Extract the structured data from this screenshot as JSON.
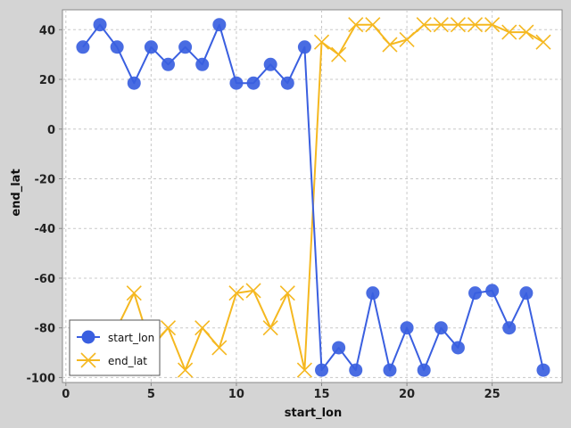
{
  "chart_data": {
    "type": "line",
    "xlabel": "start_lon",
    "ylabel": "end_lat",
    "xlim": [
      -0.2,
      29.1
    ],
    "ylim": [
      -102,
      48
    ],
    "xticks": [
      0,
      5,
      10,
      15,
      20,
      25
    ],
    "yticks": [
      40,
      20,
      0,
      -20,
      -40,
      -60,
      -80,
      -100
    ],
    "grid": true,
    "legend_position": "bottom-left",
    "x": [
      1,
      2,
      3,
      4,
      5,
      6,
      7,
      8,
      9,
      10,
      11,
      12,
      13,
      14,
      15,
      16,
      17,
      18,
      19,
      20,
      21,
      22,
      23,
      24,
      25,
      26,
      27,
      28
    ],
    "series": [
      {
        "name": "start_lon",
        "color": "#3a5fe0",
        "marker": "circle",
        "values": [
          33,
          42,
          33,
          18.5,
          33,
          26,
          33,
          26,
          42,
          18.5,
          18.5,
          26,
          18.5,
          33,
          -97,
          -88,
          -97,
          -66,
          -97,
          -80,
          -97,
          -80,
          -88,
          -66,
          -65,
          -80,
          -66,
          -97
        ]
      },
      {
        "name": "end_lat",
        "color": "#f5b820",
        "marker": "x",
        "values": [
          -80,
          -86,
          -80,
          -66,
          -88,
          -80,
          -97,
          -80,
          -88,
          -66,
          -65,
          -80,
          -66,
          -97,
          35,
          30,
          42,
          42,
          34,
          36,
          42,
          42,
          42,
          42,
          42,
          39,
          39,
          35
        ]
      }
    ]
  }
}
